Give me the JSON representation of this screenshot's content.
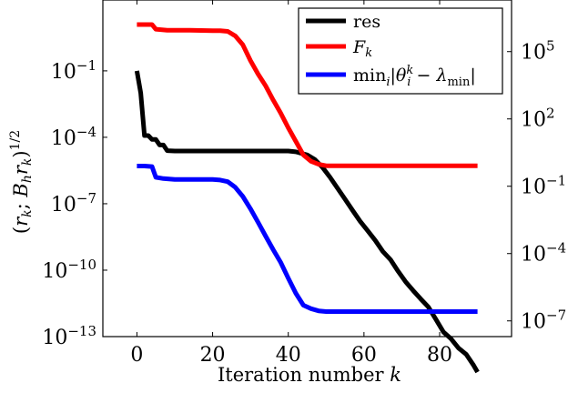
{
  "chart_data": {
    "type": "line",
    "xlabel": "Iteration number k",
    "ylabel": "(r_k, B_h r_k)^{1/2}",
    "xlim": [
      -9,
      99
    ],
    "ylim_left_log10": [
      -13,
      2.2
    ],
    "ylim_right_log10": [
      -7.7,
      7.3
    ],
    "y_scale": "log",
    "x_ticks": [
      "0",
      "20",
      "40",
      "60",
      "80"
    ],
    "left_ticks": [
      {
        "exp": "-1",
        "value": 0.1
      },
      {
        "exp": "-4",
        "value": 0.0001
      },
      {
        "exp": "-7",
        "value": 1e-07
      },
      {
        "exp": "-10",
        "value": 1e-10
      },
      {
        "exp": "-13",
        "value": 1e-13
      }
    ],
    "right_ticks": [
      {
        "exp": "5",
        "value": 100000
      },
      {
        "exp": "2",
        "value": 100
      },
      {
        "exp": "-1",
        "value": 0.1
      },
      {
        "exp": "-4",
        "value": 0.0001
      },
      {
        "exp": "-7",
        "value": 1e-07
      }
    ],
    "legend_position": "top-right",
    "series": [
      {
        "name": "res",
        "color": "#000000",
        "axis": "left",
        "points": [
          [
            0,
            0.1
          ],
          [
            1,
            0.01
          ],
          [
            2,
            0.00012
          ],
          [
            3,
            0.00012
          ],
          [
            4,
            8e-05
          ],
          [
            5,
            8e-05
          ],
          [
            6,
            4.5e-05
          ],
          [
            7,
            4.5e-05
          ],
          [
            8,
            2.5e-05
          ],
          [
            10,
            2.4e-05
          ],
          [
            20,
            2.4e-05
          ],
          [
            30,
            2.4e-05
          ],
          [
            40,
            2.4e-05
          ],
          [
            42,
            2.2e-05
          ],
          [
            45,
            1.6e-05
          ],
          [
            47,
            1e-05
          ],
          [
            49,
            4.5e-06
          ],
          [
            51,
            1.6e-06
          ],
          [
            53,
            5e-07
          ],
          [
            55,
            1.6e-07
          ],
          [
            57,
            5e-08
          ],
          [
            59,
            1.6e-08
          ],
          [
            61,
            6e-09
          ],
          [
            63,
            2.2e-09
          ],
          [
            65,
            7e-10
          ],
          [
            67,
            3e-10
          ],
          [
            69,
            9e-11
          ],
          [
            71,
            3e-11
          ],
          [
            73,
            1.2e-11
          ],
          [
            75,
            5e-12
          ],
          [
            77,
            2.2e-12
          ],
          [
            79,
            6e-13
          ],
          [
            81,
            1.6e-13
          ],
          [
            83,
            8e-14
          ],
          [
            85,
            3e-14
          ],
          [
            87,
            1.6e-14
          ],
          [
            89,
            5e-15
          ],
          [
            90,
            2.5e-15
          ]
        ]
      },
      {
        "name": "F_k",
        "color": "#ff0000",
        "axis": "right",
        "points": [
          [
            0,
            1600000.0
          ],
          [
            2,
            1600000.0
          ],
          [
            4,
            1600000.0
          ],
          [
            5,
            1000000.0
          ],
          [
            8,
            900000.0
          ],
          [
            14,
            900000.0
          ],
          [
            20,
            850000.0
          ],
          [
            22,
            850000.0
          ],
          [
            24,
            800000.0
          ],
          [
            26,
            500000.0
          ],
          [
            28,
            200000.0
          ],
          [
            30,
            40000.0
          ],
          [
            32,
            10000.0
          ],
          [
            34,
            3000.0
          ],
          [
            36,
            700
          ],
          [
            38,
            180
          ],
          [
            40,
            40
          ],
          [
            42,
            10
          ],
          [
            44,
            2.5
          ],
          [
            46,
            1.3
          ],
          [
            48,
            0.95
          ],
          [
            50,
            0.82
          ],
          [
            55,
            0.82
          ],
          [
            70,
            0.82
          ],
          [
            90,
            0.82
          ]
        ]
      },
      {
        "name": "min_i |θ_i^k − λ_min|",
        "color": "#0000ff",
        "axis": "right",
        "points": [
          [
            0,
            0.8
          ],
          [
            2,
            0.8
          ],
          [
            4,
            0.75
          ],
          [
            5,
            0.25
          ],
          [
            7,
            0.22
          ],
          [
            10,
            0.2
          ],
          [
            20,
            0.2
          ],
          [
            22,
            0.19
          ],
          [
            24,
            0.16
          ],
          [
            26,
            0.09
          ],
          [
            28,
            0.035
          ],
          [
            30,
            0.01
          ],
          [
            32,
            0.0025
          ],
          [
            34,
            0.0006
          ],
          [
            36,
            0.00015
          ],
          [
            38,
            4e-05
          ],
          [
            40,
            8e-06
          ],
          [
            42,
            1.7e-06
          ],
          [
            44,
            5e-07
          ],
          [
            46,
            3.5e-07
          ],
          [
            48,
            2.8e-07
          ],
          [
            50,
            2.6e-07
          ],
          [
            60,
            2.6e-07
          ],
          [
            70,
            2.6e-07
          ],
          [
            80,
            2.6e-07
          ],
          [
            90,
            2.6e-07
          ]
        ]
      }
    ]
  }
}
